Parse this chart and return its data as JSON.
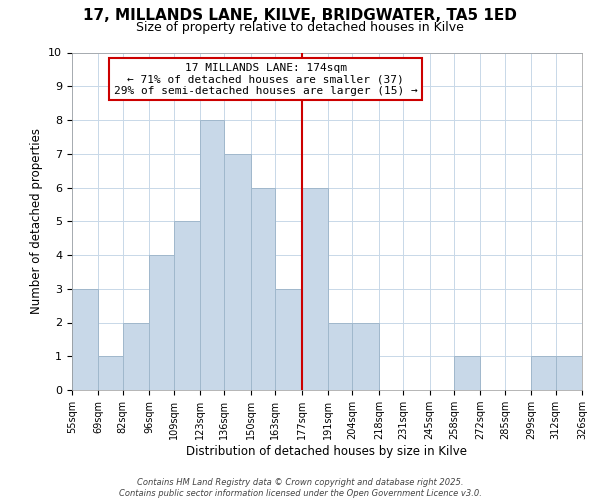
{
  "title": "17, MILLANDS LANE, KILVE, BRIDGWATER, TA5 1ED",
  "subtitle": "Size of property relative to detached houses in Kilve",
  "xlabel": "Distribution of detached houses by size in Kilve",
  "ylabel": "Number of detached properties",
  "bin_edges": [
    55,
    69,
    82,
    96,
    109,
    123,
    136,
    150,
    163,
    177,
    191,
    204,
    218,
    231,
    245,
    258,
    272,
    285,
    299,
    312,
    326
  ],
  "bin_counts": [
    3,
    1,
    2,
    4,
    5,
    8,
    7,
    6,
    3,
    6,
    2,
    2,
    0,
    0,
    0,
    1,
    0,
    0,
    1,
    1
  ],
  "bar_color": "#c8d8e8",
  "bar_edgecolor": "#a0b8cc",
  "vline_x": 177,
  "vline_color": "#cc0000",
  "ylim": [
    0,
    10
  ],
  "yticks": [
    0,
    1,
    2,
    3,
    4,
    5,
    6,
    7,
    8,
    9,
    10
  ],
  "annotation_line1": "17 MILLANDS LANE: 174sqm",
  "annotation_line2": "← 71% of detached houses are smaller (37)",
  "annotation_line3": "29% of semi-detached houses are larger (15) →",
  "annotation_boxcolor": "#ffffff",
  "annotation_edgecolor": "#cc0000",
  "footer_text": "Contains HM Land Registry data © Crown copyright and database right 2025.\nContains public sector information licensed under the Open Government Licence v3.0.",
  "background_color": "#ffffff",
  "grid_color": "#c8d8e8",
  "title_fontsize": 11,
  "subtitle_fontsize": 9,
  "annotation_fontsize": 8,
  "footer_fontsize": 6
}
